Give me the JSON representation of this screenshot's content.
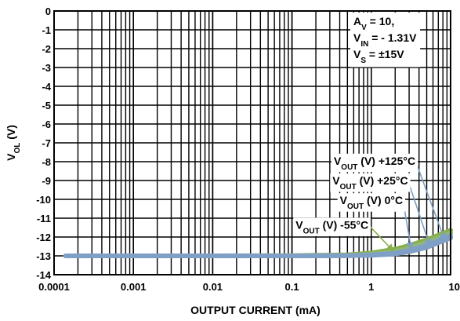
{
  "chart_data": {
    "type": "line",
    "title": "",
    "xlabel": "OUTPUT CURRENT (mA)",
    "ylabel": {
      "main": "V",
      "sub": "OL",
      "tail": " (V)"
    },
    "x_scale": "log",
    "xlim": [
      0.0001,
      10
    ],
    "ylim": [
      -14,
      0
    ],
    "x_ticks": [
      {
        "value": 0.0001,
        "label": "0.0001"
      },
      {
        "value": 0.001,
        "label": "0.001"
      },
      {
        "value": 0.01,
        "label": "0.01"
      },
      {
        "value": 0.1,
        "label": "0.1"
      },
      {
        "value": 1,
        "label": "1"
      },
      {
        "value": 10,
        "label": "10"
      }
    ],
    "y_ticks": [
      {
        "value": 0,
        "label": "0"
      },
      {
        "value": -1,
        "label": "-1"
      },
      {
        "value": -2,
        "label": "-2"
      },
      {
        "value": -3,
        "label": "-3"
      },
      {
        "value": -4,
        "label": "-4"
      },
      {
        "value": -5,
        "label": "-5"
      },
      {
        "value": -6,
        "label": "-6"
      },
      {
        "value": -7,
        "label": "-7"
      },
      {
        "value": -8,
        "label": "-8"
      },
      {
        "value": -9,
        "label": "-9"
      },
      {
        "value": -10,
        "label": "-10"
      },
      {
        "value": -11,
        "label": "-11"
      },
      {
        "value": -12,
        "label": "-12"
      },
      {
        "value": -13,
        "label": "-13"
      },
      {
        "value": -14,
        "label": "-14"
      }
    ],
    "grid": true,
    "conditions": [
      {
        "main": "A",
        "sub": "V",
        "tail": " = 10,"
      },
      {
        "main": "V",
        "sub": "IN",
        "tail": " = - 1.31V"
      },
      {
        "main": "V",
        "sub": "S",
        "tail": " = ±15V"
      }
    ],
    "series": [
      {
        "name": {
          "main": "V",
          "sub": "OUT",
          "tail": " (V) +125°C"
        },
        "color": "#7f9fc6",
        "x": [
          0.00014,
          0.001,
          0.01,
          0.1,
          0.5,
          1,
          2,
          3,
          5,
          7,
          10
        ],
        "y": [
          -13.0,
          -13.0,
          -13.0,
          -13.0,
          -12.99,
          -12.97,
          -12.9,
          -12.78,
          -12.55,
          -12.3,
          -12.05
        ],
        "label_anchor": {
          "x": 3.6,
          "y": -7.95
        }
      },
      {
        "name": {
          "main": "V",
          "sub": "OUT",
          "tail": " (V) +25°C"
        },
        "color": "#7f9fc6",
        "x": [
          0.00014,
          0.001,
          0.01,
          0.1,
          0.5,
          1,
          2,
          3,
          5,
          7,
          10
        ],
        "y": [
          -13.0,
          -13.0,
          -13.0,
          -13.0,
          -12.99,
          -12.96,
          -12.86,
          -12.72,
          -12.45,
          -12.2,
          -11.95
        ],
        "label_anchor": {
          "x": 2.9,
          "y": -9.0
        }
      },
      {
        "name": {
          "main": "V",
          "sub": "OUT",
          "tail": " (V) 0°C"
        },
        "color": "#8fb87a",
        "x": [
          0.00014,
          0.001,
          0.01,
          0.1,
          0.5,
          1,
          2,
          3,
          5,
          7,
          10
        ],
        "y": [
          -13.0,
          -13.0,
          -13.0,
          -13.0,
          -12.98,
          -12.92,
          -12.78,
          -12.6,
          -12.3,
          -12.05,
          -11.8
        ],
        "label_anchor": {
          "x": 2.5,
          "y": -10.05
        }
      },
      {
        "name": {
          "main": "V",
          "sub": "OUT",
          "tail": " (V) -55°C"
        },
        "color": "#89b04a",
        "x": [
          0.00014,
          0.001,
          0.01,
          0.1,
          0.5,
          1,
          2,
          3,
          5,
          7,
          10
        ],
        "y": [
          -13.0,
          -13.0,
          -13.0,
          -12.99,
          -12.95,
          -12.85,
          -12.65,
          -12.45,
          -12.15,
          -11.9,
          -11.65
        ],
        "label_anchor": {
          "x": 0.92,
          "y": -11.35
        }
      }
    ],
    "annotation_arrows": [
      {
        "from": {
          "x": 3.6,
          "y": -7.95
        },
        "to": {
          "x": 8.5,
          "y": -12.2
        },
        "color": "#7f9fc6"
      },
      {
        "from": {
          "x": 2.9,
          "y": -9.0
        },
        "to": {
          "x": 5.5,
          "y": -12.5
        },
        "color": "#7f9fc6"
      },
      {
        "from": {
          "x": 2.5,
          "y": -10.05
        },
        "to": {
          "x": 3.2,
          "y": -12.65
        },
        "color": "#7f9fc6"
      },
      {
        "from": {
          "x": 0.92,
          "y": -11.35
        },
        "to": {
          "x": 1.9,
          "y": -12.75
        },
        "color": "#89b04a"
      }
    ]
  }
}
